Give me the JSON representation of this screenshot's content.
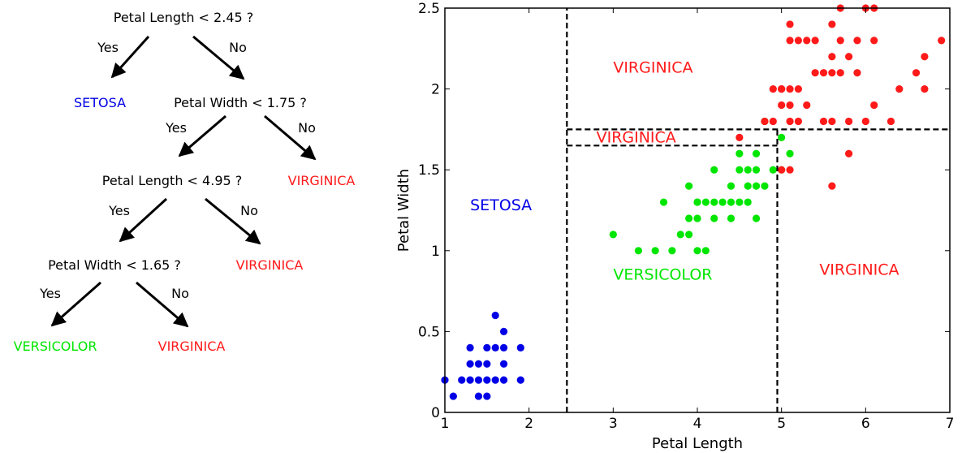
{
  "tree": {
    "colors": {
      "setosa": "#0000e6",
      "versicolor": "#00e600",
      "virginica": "#ff1a1a"
    },
    "nodes": {
      "n1": "Petal Length < 2.45 ?",
      "n2": "Petal Width < 1.75 ?",
      "n3": "Petal Length < 4.95 ?",
      "n4": "Petal Width < 1.65 ?"
    },
    "branch_labels": {
      "yes": "Yes",
      "no": "No"
    },
    "leaves": {
      "l1": "SETOSA",
      "l2": "VIRGINICA",
      "l3": "VIRGINICA",
      "l4": "VERSICOLOR",
      "l5": "VIRGINICA"
    }
  },
  "chart_data": {
    "type": "scatter",
    "title": "",
    "xlabel": "Petal Length",
    "ylabel": "Petal Width",
    "xlim": [
      1,
      7
    ],
    "ylim": [
      0,
      2.5
    ],
    "xticks": [
      "1",
      "2",
      "3",
      "4",
      "5",
      "6",
      "7"
    ],
    "yticks": [
      "0",
      "0.5",
      "1",
      "1.5",
      "2",
      "2.5"
    ],
    "grid": false,
    "boundaries": [
      {
        "type": "vertical",
        "x": 2.45,
        "y": [
          0,
          2.5
        ]
      },
      {
        "type": "horizontal",
        "y": 1.75,
        "x": [
          2.45,
          7
        ]
      },
      {
        "type": "vertical",
        "x": 4.95,
        "y": [
          0,
          1.75
        ]
      },
      {
        "type": "horizontal",
        "y": 1.65,
        "x": [
          2.45,
          4.95
        ]
      }
    ],
    "region_labels": [
      {
        "text": "SETOSA",
        "class": "setosa",
        "x": 1.3,
        "y": 1.25
      },
      {
        "text": "VIRGINICA",
        "class": "virginica",
        "x": 3.0,
        "y": 2.1
      },
      {
        "text": "VIRGINICA",
        "class": "virginica",
        "x": 2.8,
        "y": 1.67
      },
      {
        "text": "VERSICOLOR",
        "class": "versicolor",
        "x": 3.0,
        "y": 0.82
      },
      {
        "text": "VIRGINICA",
        "class": "virginica",
        "x": 5.45,
        "y": 0.85
      }
    ],
    "series": [
      {
        "class": "setosa",
        "points": [
          [
            1.0,
            0.2
          ],
          [
            1.1,
            0.1
          ],
          [
            1.2,
            0.2
          ],
          [
            1.3,
            0.2
          ],
          [
            1.3,
            0.3
          ],
          [
            1.3,
            0.4
          ],
          [
            1.4,
            0.1
          ],
          [
            1.4,
            0.2
          ],
          [
            1.4,
            0.3
          ],
          [
            1.5,
            0.1
          ],
          [
            1.5,
            0.2
          ],
          [
            1.5,
            0.3
          ],
          [
            1.5,
            0.4
          ],
          [
            1.6,
            0.2
          ],
          [
            1.6,
            0.4
          ],
          [
            1.6,
            0.6
          ],
          [
            1.7,
            0.2
          ],
          [
            1.7,
            0.3
          ],
          [
            1.7,
            0.4
          ],
          [
            1.7,
            0.5
          ],
          [
            1.9,
            0.2
          ],
          [
            1.9,
            0.4
          ]
        ]
      },
      {
        "class": "versicolor",
        "points": [
          [
            3.0,
            1.1
          ],
          [
            3.3,
            1.0
          ],
          [
            3.5,
            1.0
          ],
          [
            3.6,
            1.3
          ],
          [
            3.7,
            1.0
          ],
          [
            3.8,
            1.1
          ],
          [
            3.9,
            1.1
          ],
          [
            3.9,
            1.2
          ],
          [
            3.9,
            1.4
          ],
          [
            4.0,
            1.0
          ],
          [
            4.0,
            1.2
          ],
          [
            4.0,
            1.3
          ],
          [
            4.1,
            1.0
          ],
          [
            4.1,
            1.3
          ],
          [
            4.2,
            1.2
          ],
          [
            4.2,
            1.3
          ],
          [
            4.2,
            1.5
          ],
          [
            4.3,
            1.3
          ],
          [
            4.4,
            1.2
          ],
          [
            4.4,
            1.3
          ],
          [
            4.4,
            1.4
          ],
          [
            4.5,
            1.3
          ],
          [
            4.5,
            1.5
          ],
          [
            4.6,
            1.3
          ],
          [
            4.6,
            1.4
          ],
          [
            4.6,
            1.5
          ],
          [
            4.7,
            1.2
          ],
          [
            4.7,
            1.4
          ],
          [
            4.7,
            1.5
          ],
          [
            4.8,
            1.4
          ],
          [
            4.8,
            1.8
          ],
          [
            4.9,
            1.5
          ],
          [
            5.0,
            1.7
          ],
          [
            5.1,
            1.6
          ],
          [
            4.5,
            1.6
          ],
          [
            4.7,
            1.6
          ],
          [
            4.0,
            1.3
          ],
          [
            5.0,
            1.5
          ]
        ]
      },
      {
        "class": "virginica",
        "points": [
          [
            4.5,
            1.7
          ],
          [
            4.8,
            1.8
          ],
          [
            4.9,
            1.8
          ],
          [
            5.0,
            1.5
          ],
          [
            4.9,
            2.0
          ],
          [
            5.0,
            2.0
          ],
          [
            5.0,
            1.9
          ],
          [
            5.1,
            1.5
          ],
          [
            5.1,
            1.8
          ],
          [
            5.1,
            1.9
          ],
          [
            5.1,
            2.0
          ],
          [
            5.1,
            2.3
          ],
          [
            5.1,
            2.4
          ],
          [
            5.2,
            2.0
          ],
          [
            5.2,
            2.3
          ],
          [
            5.3,
            1.9
          ],
          [
            5.3,
            2.3
          ],
          [
            5.4,
            2.1
          ],
          [
            5.4,
            2.3
          ],
          [
            5.5,
            1.8
          ],
          [
            5.5,
            2.1
          ],
          [
            5.6,
            1.4
          ],
          [
            5.6,
            1.8
          ],
          [
            5.6,
            2.1
          ],
          [
            5.6,
            2.2
          ],
          [
            5.6,
            2.4
          ],
          [
            5.7,
            2.1
          ],
          [
            5.7,
            2.3
          ],
          [
            5.7,
            2.5
          ],
          [
            5.8,
            1.6
          ],
          [
            5.8,
            1.8
          ],
          [
            5.8,
            2.2
          ],
          [
            5.9,
            2.1
          ],
          [
            5.9,
            2.3
          ],
          [
            6.0,
            1.8
          ],
          [
            6.0,
            2.5
          ],
          [
            6.1,
            1.9
          ],
          [
            6.1,
            2.3
          ],
          [
            6.1,
            2.5
          ],
          [
            6.3,
            1.8
          ],
          [
            6.4,
            2.0
          ],
          [
            6.6,
            2.1
          ],
          [
            6.7,
            2.0
          ],
          [
            6.7,
            2.2
          ],
          [
            6.9,
            2.3
          ],
          [
            5.0,
            2.0
          ],
          [
            5.2,
            1.8
          ]
        ]
      }
    ]
  }
}
